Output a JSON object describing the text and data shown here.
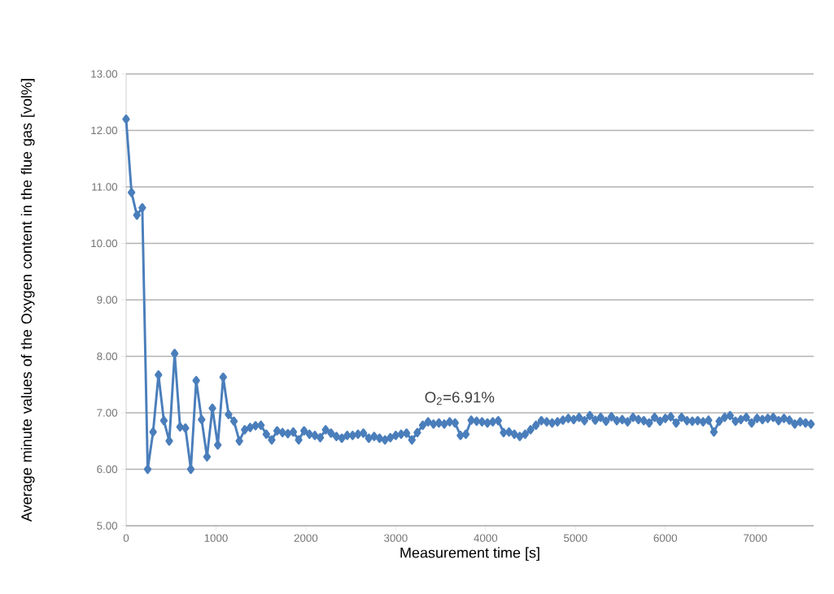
{
  "chart_data": {
    "type": "line",
    "xlabel": "Measurement time [s]",
    "ylabel": "Average minute values of the Oxygen content in the flue gas [vol%]",
    "annotations": [
      "O$_{2}$=6.91%"
    ],
    "x": [
      0,
      60,
      120,
      180,
      240,
      300,
      360,
      420,
      480,
      540,
      600,
      660,
      720,
      780,
      840,
      900,
      960,
      1020,
      1080,
      1140,
      1200,
      1260,
      1320,
      1380,
      1440,
      1500,
      1560,
      1620,
      1680,
      1740,
      1800,
      1860,
      1920,
      1980,
      2040,
      2100,
      2160,
      2220,
      2280,
      2340,
      2400,
      2460,
      2520,
      2580,
      2640,
      2700,
      2760,
      2820,
      2880,
      2940,
      3000,
      3060,
      3120,
      3180,
      3240,
      3300,
      3360,
      3420,
      3480,
      3540,
      3600,
      3660,
      3720,
      3780,
      3840,
      3900,
      3960,
      4020,
      4080,
      4140,
      4200,
      4260,
      4320,
      4380,
      4440,
      4500,
      4560,
      4620,
      4680,
      4740,
      4800,
      4860,
      4920,
      4980,
      5040,
      5100,
      5160,
      5220,
      5280,
      5340,
      5400,
      5460,
      5520,
      5580,
      5640,
      5700,
      5760,
      5820,
      5880,
      5940,
      6000,
      6060,
      6120,
      6180,
      6240,
      6300,
      6360,
      6420,
      6480,
      6540,
      6600,
      6660,
      6720,
      6780,
      6840,
      6900,
      6960,
      7020,
      7080,
      7140,
      7200,
      7260,
      7320,
      7380,
      7440,
      7500,
      7560,
      7620
    ],
    "series": [
      {
        "color": "#4a7ebb",
        "values": [
          12.2,
          10.9,
          10.5,
          10.63,
          6.0,
          6.66,
          7.67,
          6.86,
          6.5,
          8.05,
          6.75,
          6.73,
          6.0,
          7.57,
          6.88,
          6.22,
          7.08,
          6.43,
          7.63,
          6.97,
          6.85,
          6.5,
          6.7,
          6.74,
          6.77,
          6.78,
          6.62,
          6.52,
          6.68,
          6.65,
          6.63,
          6.66,
          6.52,
          6.68,
          6.62,
          6.6,
          6.56,
          6.7,
          6.64,
          6.58,
          6.55,
          6.6,
          6.6,
          6.62,
          6.64,
          6.55,
          6.58,
          6.55,
          6.52,
          6.56,
          6.6,
          6.62,
          6.64,
          6.52,
          6.65,
          6.78,
          6.84,
          6.8,
          6.82,
          6.8,
          6.84,
          6.82,
          6.6,
          6.62,
          6.87,
          6.85,
          6.84,
          6.82,
          6.84,
          6.86,
          6.65,
          6.66,
          6.62,
          6.58,
          6.62,
          6.7,
          6.78,
          6.86,
          6.84,
          6.82,
          6.84,
          6.87,
          6.9,
          6.88,
          6.92,
          6.86,
          6.95,
          6.87,
          6.92,
          6.85,
          6.93,
          6.86,
          6.88,
          6.84,
          6.92,
          6.88,
          6.86,
          6.82,
          6.92,
          6.85,
          6.9,
          6.93,
          6.82,
          6.92,
          6.86,
          6.85,
          6.86,
          6.84,
          6.87,
          6.66,
          6.85,
          6.92,
          6.95,
          6.85,
          6.88,
          6.92,
          6.82,
          6.9,
          6.88,
          6.9,
          6.92,
          6.86,
          6.9,
          6.87,
          6.8,
          6.84,
          6.82,
          6.8
        ]
      }
    ],
    "xlim": [
      0,
      7650
    ],
    "ylim": [
      5,
      13
    ],
    "xticks": [
      0,
      1000,
      2000,
      3000,
      4000,
      5000,
      6000,
      7000
    ],
    "yticks": [
      {
        "value": 5,
        "label": "5.00"
      },
      {
        "value": 6,
        "label": "6.00"
      },
      {
        "value": 7,
        "label": "7.00"
      },
      {
        "value": 8,
        "label": "8.00"
      },
      {
        "value": 9,
        "label": "9.00"
      },
      {
        "value": 10,
        "label": "10.00"
      },
      {
        "value": 11,
        "label": "11.00"
      },
      {
        "value": 12,
        "label": "12.00"
      },
      {
        "value": 13,
        "label": "13.00"
      }
    ],
    "grid": "y",
    "marker": "diamond",
    "line_style": "solid"
  }
}
